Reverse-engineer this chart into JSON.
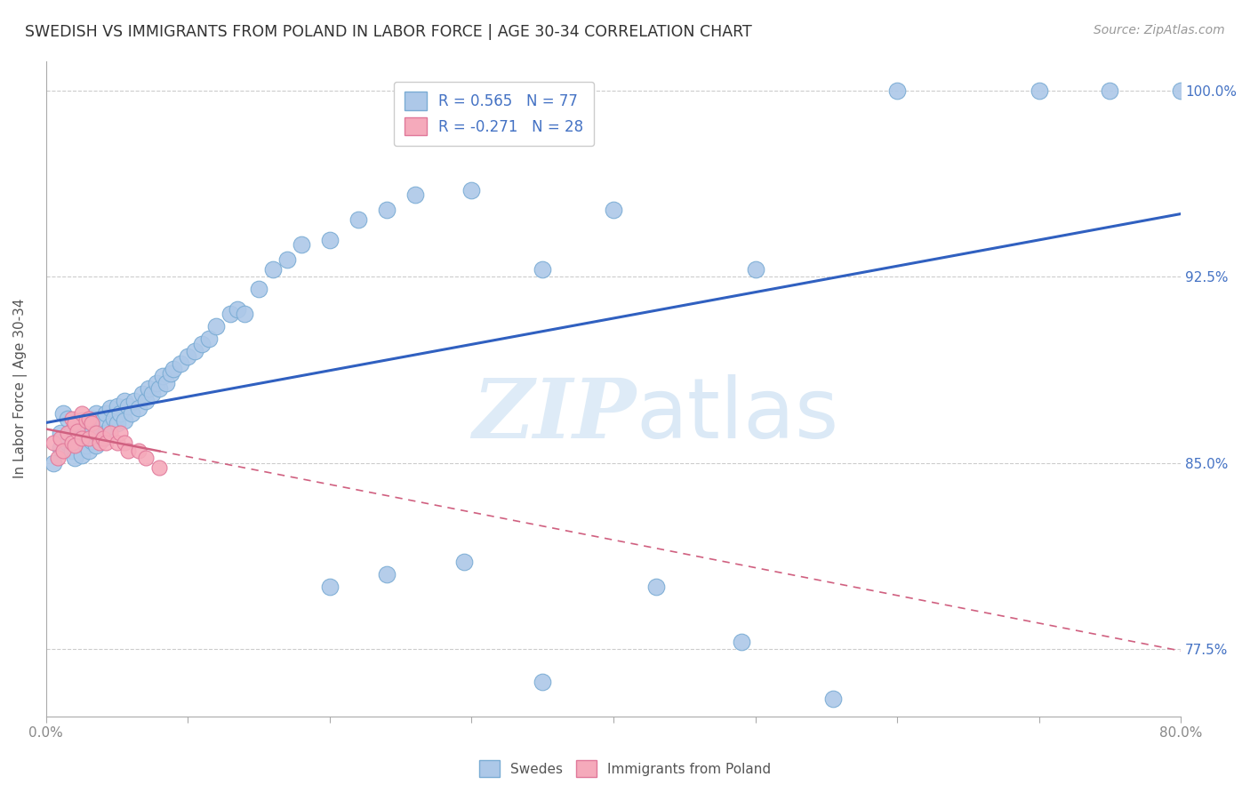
{
  "title": "SWEDISH VS IMMIGRANTS FROM POLAND IN LABOR FORCE | AGE 30-34 CORRELATION CHART",
  "source": "Source: ZipAtlas.com",
  "ylabel": "In Labor Force | Age 30-34",
  "ytick_labels": [
    "100.0%",
    "92.5%",
    "85.0%",
    "77.5%"
  ],
  "ytick_values": [
    1.0,
    0.925,
    0.85,
    0.775
  ],
  "xmin": 0.0,
  "xmax": 0.8,
  "ymin": 0.748,
  "ymax": 1.012,
  "legend_R_swedes": "R = 0.565",
  "legend_N_swedes": "N = 77",
  "legend_R_poland": "R = -0.271",
  "legend_N_poland": "N = 28",
  "swedes_color": "#adc8e8",
  "swedes_edge_color": "#7aacd4",
  "poland_color": "#f5aabb",
  "poland_edge_color": "#e0789a",
  "trend_swedes_color": "#3060c0",
  "trend_poland_color": "#d06080",
  "legend_text_color": "#4472c4",
  "watermark_zip": "ZIP",
  "watermark_atlas": "atlas",
  "swedes_x": [
    0.005,
    0.01,
    0.01,
    0.012,
    0.015,
    0.015,
    0.018,
    0.018,
    0.02,
    0.02,
    0.022,
    0.022,
    0.025,
    0.025,
    0.025,
    0.028,
    0.028,
    0.03,
    0.03,
    0.03,
    0.032,
    0.033,
    0.035,
    0.035,
    0.035,
    0.038,
    0.04,
    0.04,
    0.042,
    0.042,
    0.045,
    0.045,
    0.048,
    0.05,
    0.05,
    0.052,
    0.055,
    0.055,
    0.058,
    0.06,
    0.062,
    0.065,
    0.068,
    0.07,
    0.072,
    0.075,
    0.078,
    0.08,
    0.082,
    0.085,
    0.088,
    0.09,
    0.095,
    0.1,
    0.105,
    0.11,
    0.115,
    0.12,
    0.13,
    0.135,
    0.14,
    0.15,
    0.16,
    0.17,
    0.18,
    0.2,
    0.22,
    0.24,
    0.26,
    0.3,
    0.35,
    0.4,
    0.5,
    0.6,
    0.7,
    0.75,
    0.8
  ],
  "swedes_y": [
    0.85,
    0.856,
    0.862,
    0.87,
    0.858,
    0.868,
    0.855,
    0.863,
    0.852,
    0.86,
    0.858,
    0.866,
    0.853,
    0.86,
    0.867,
    0.857,
    0.864,
    0.855,
    0.861,
    0.867,
    0.859,
    0.868,
    0.857,
    0.862,
    0.87,
    0.862,
    0.86,
    0.867,
    0.862,
    0.87,
    0.865,
    0.872,
    0.868,
    0.866,
    0.873,
    0.87,
    0.867,
    0.875,
    0.873,
    0.87,
    0.875,
    0.872,
    0.878,
    0.875,
    0.88,
    0.878,
    0.882,
    0.88,
    0.885,
    0.882,
    0.886,
    0.888,
    0.89,
    0.893,
    0.895,
    0.898,
    0.9,
    0.905,
    0.91,
    0.912,
    0.91,
    0.92,
    0.928,
    0.932,
    0.938,
    0.94,
    0.948,
    0.952,
    0.958,
    0.96,
    0.928,
    0.952,
    0.928,
    1.0,
    1.0,
    1.0,
    1.0
  ],
  "swedes_outlier_x": [
    0.2,
    0.24,
    0.295,
    0.35,
    0.43,
    0.49,
    0.555
  ],
  "swedes_outlier_y": [
    0.8,
    0.805,
    0.81,
    0.762,
    0.8,
    0.778,
    0.755
  ],
  "poland_x": [
    0.005,
    0.008,
    0.01,
    0.012,
    0.015,
    0.018,
    0.018,
    0.02,
    0.02,
    0.022,
    0.025,
    0.025,
    0.028,
    0.03,
    0.03,
    0.032,
    0.035,
    0.038,
    0.04,
    0.042,
    0.045,
    0.05,
    0.052,
    0.055,
    0.058,
    0.065,
    0.07,
    0.08
  ],
  "poland_y": [
    0.858,
    0.852,
    0.86,
    0.855,
    0.862,
    0.858,
    0.868,
    0.857,
    0.866,
    0.863,
    0.86,
    0.87,
    0.867,
    0.86,
    0.868,
    0.866,
    0.862,
    0.858,
    0.86,
    0.858,
    0.862,
    0.858,
    0.862,
    0.858,
    0.855,
    0.855,
    0.852,
    0.848
  ]
}
